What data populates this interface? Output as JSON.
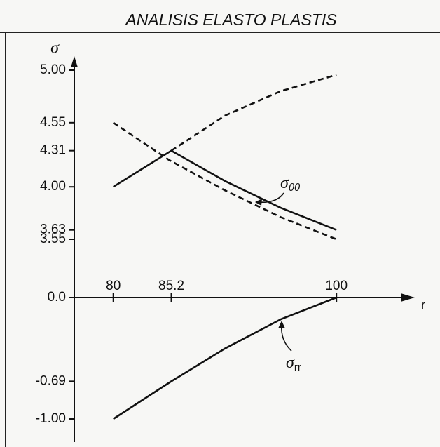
{
  "chart_data": {
    "type": "line",
    "title": "ANALISIS ELASTO PLASTIS",
    "x_label": "r",
    "y_label": "σ",
    "xlim": [
      76.5,
      102.5
    ],
    "xticks": [
      80,
      85.2,
      100
    ],
    "ylim": [
      -1.0,
      5.0
    ],
    "ybreak": [
      0.0,
      3.55
    ],
    "yticks": [
      {
        "value": 5.0,
        "label": "5.00"
      },
      4.55,
      4.31,
      {
        "value": 4.0,
        "label": "4.00"
      },
      3.63,
      3.55,
      {
        "value": 0.0,
        "label": "0.0"
      },
      -0.69,
      {
        "value": -1.0,
        "label": "-1.00"
      }
    ],
    "series": [
      {
        "color": "#111111",
        "style": "solid",
        "x": [
          80,
          85.2,
          90,
          95,
          100
        ],
        "values": [
          4.0,
          4.31,
          4.05,
          3.82,
          3.63
        ]
      },
      {
        "color": "#111111",
        "style": "dashed",
        "x": [
          80,
          85,
          90,
          95,
          100
        ],
        "values": [
          4.55,
          4.23,
          3.97,
          3.74,
          3.55
        ]
      },
      {
        "color": "#111111",
        "style": "dashed",
        "x": [
          85.2,
          90,
          95,
          100
        ],
        "values": [
          4.31,
          4.61,
          4.82,
          4.96
        ]
      },
      {
        "color": "#111111",
        "style": "solid",
        "x": [
          80,
          85.2,
          90,
          95,
          100
        ],
        "values": [
          -1.0,
          -0.69,
          -0.42,
          -0.18,
          0.0
        ]
      }
    ],
    "annotations": [
      {
        "symbol": "σ",
        "subscript": "θθ"
      },
      {
        "symbol": "σ",
        "subscript": "rr"
      }
    ]
  }
}
